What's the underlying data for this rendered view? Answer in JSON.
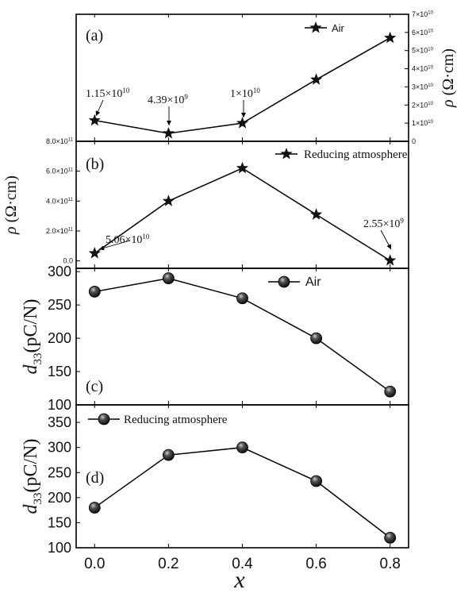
{
  "figure": {
    "x_axis_label": "x",
    "x_ticks": [
      "0.0",
      "0.2",
      "0.4",
      "0.6",
      "0.8"
    ]
  },
  "chart_data": [
    {
      "panel": "(a)",
      "type": "line",
      "marker": "star",
      "x": [
        0.0,
        0.2,
        0.4,
        0.6,
        0.8
      ],
      "series": [
        {
          "name": "Air",
          "values": [
            11500000000,
            4390000000,
            10000000000,
            34000000000,
            57000000000
          ]
        }
      ],
      "ylabel": "ρ (Ω·cm)",
      "ylabel_side": "right",
      "ylim": [
        0,
        70000000000
      ],
      "y_tick_labels": [
        "0",
        "1×10¹⁰",
        "2×10¹⁰",
        "3×10¹⁰",
        "4×10¹⁰",
        "5×10¹⁰",
        "6×10¹⁰",
        "7×10¹⁰"
      ],
      "annotations": [
        "1.15×10¹⁰",
        "4.39×10⁹",
        "1×10¹⁰"
      ],
      "legend": "top-center"
    },
    {
      "panel": "(b)",
      "type": "line",
      "marker": "star",
      "x": [
        0.0,
        0.2,
        0.4,
        0.6,
        0.8
      ],
      "series": [
        {
          "name": "Reducing atmosphere",
          "values": [
            50600000000,
            400000000000,
            620000000000,
            310000000000,
            2550000000
          ]
        }
      ],
      "ylabel": "ρ (Ω·cm)",
      "ylabel_side": "left",
      "ylim": [
        -50000000000,
        800000000000
      ],
      "y_tick_labels": [
        "0.0",
        "2.0×10¹¹",
        "4.0×10¹¹",
        "6.0×10¹¹",
        "8.0×10¹¹"
      ],
      "annotations": [
        "5.06×10¹⁰",
        "2.55×10⁹"
      ],
      "legend": "top-right"
    },
    {
      "panel": "(c)",
      "type": "line",
      "marker": "sphere",
      "x": [
        0.0,
        0.2,
        0.4,
        0.6,
        0.8
      ],
      "series": [
        {
          "name": "Air",
          "values": [
            270,
            290,
            260,
            200,
            120
          ]
        }
      ],
      "ylabel": "d33(pC/N)",
      "ylim": [
        100,
        305
      ],
      "y_tick_labels": [
        "100",
        "150",
        "200",
        "250",
        "300"
      ],
      "legend": "top-center"
    },
    {
      "panel": "(d)",
      "type": "line",
      "marker": "sphere",
      "x": [
        0.0,
        0.2,
        0.4,
        0.6,
        0.8
      ],
      "series": [
        {
          "name": "Reducing atmosphere",
          "values": [
            180,
            285,
            300,
            233,
            120
          ]
        }
      ],
      "ylabel": "d33(pC/N)",
      "ylim": [
        100,
        385
      ],
      "y_tick_labels": [
        "100",
        "150",
        "200",
        "250",
        "300",
        "350"
      ],
      "legend": "top-left"
    }
  ]
}
